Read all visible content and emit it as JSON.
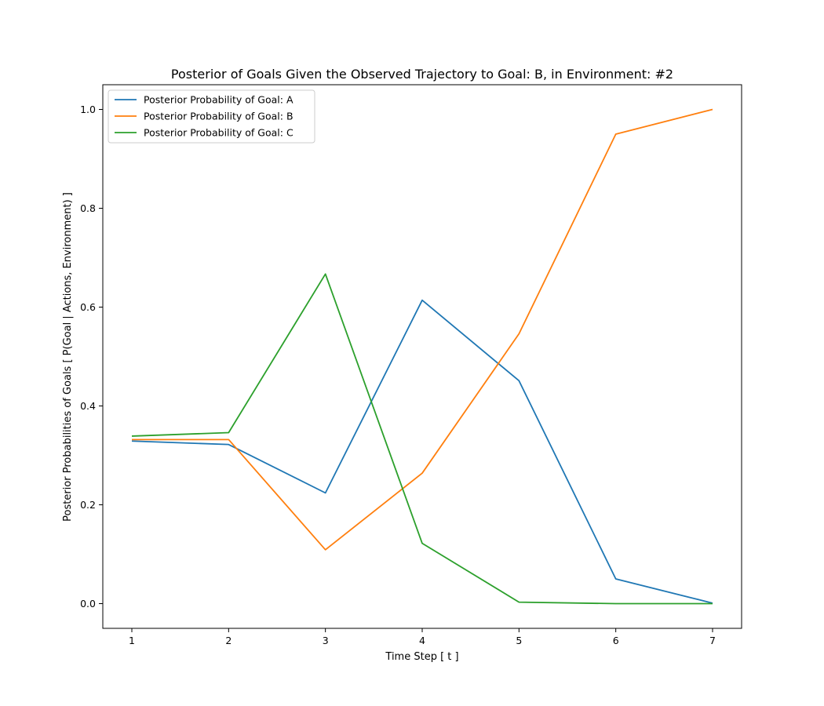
{
  "chart_data": {
    "type": "line",
    "title": "Posterior of Goals Given the Observed Trajectory to Goal: B, in Environment: #2",
    "xlabel": "Time Step [ t ]",
    "ylabel": "Posterior Probabilities of Goals [ P(Goal | Actions, Environment) ]",
    "x": [
      1,
      2,
      3,
      4,
      5,
      6,
      7
    ],
    "xticks": [
      "1",
      "2",
      "3",
      "4",
      "5",
      "6",
      "7"
    ],
    "yticks": [
      "0.0",
      "0.2",
      "0.4",
      "0.6",
      "0.8",
      "1.0"
    ],
    "xlim": [
      0.7,
      7.3
    ],
    "ylim": [
      -0.05,
      1.05
    ],
    "grid": false,
    "legend_position": "upper-left",
    "series": [
      {
        "name": "Posterior Probability of Goal: A",
        "color": "#1f77b4",
        "values": [
          0.329,
          0.322,
          0.224,
          0.614,
          0.451,
          0.05,
          0.001
        ]
      },
      {
        "name": "Posterior Probability of Goal: B",
        "color": "#ff7f0e",
        "values": [
          0.332,
          0.332,
          0.109,
          0.264,
          0.546,
          0.95,
          1.0
        ]
      },
      {
        "name": "Posterior Probability of Goal: C",
        "color": "#2ca02c",
        "values": [
          0.339,
          0.346,
          0.667,
          0.122,
          0.003,
          0.0,
          0.0
        ]
      }
    ]
  }
}
